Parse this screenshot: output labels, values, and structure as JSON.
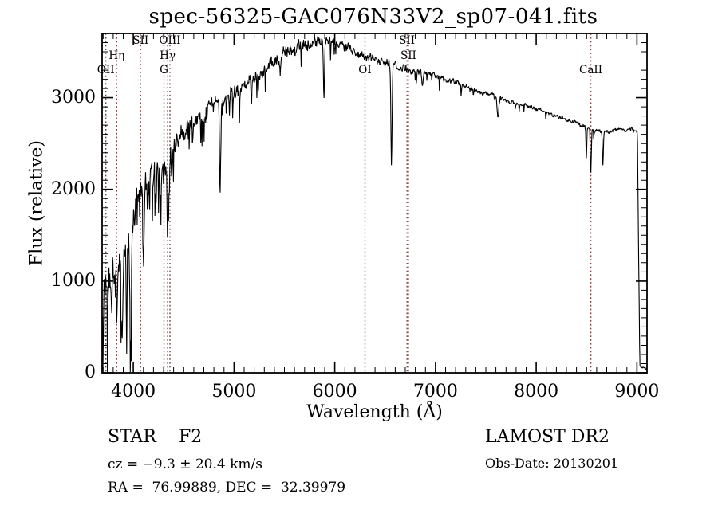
{
  "title": "spec-56325-GAC076N33V2_sp07-041.fits",
  "annotations": {
    "class_line": "STAR    F2",
    "cz_line": "cz = −9.3 ± 20.4 km/s",
    "radec_line": "RA =  76.99889, DEC =  32.39979",
    "survey": "LAMOST DR2",
    "obs_date": "Obs-Date: 20130201"
  },
  "chart_data": {
    "type": "line",
    "title": "spec-56325-GAC076N33V2_sp07-041.fits",
    "xlabel": "Wavelength (Å)",
    "ylabel": "Flux (relative)",
    "xlim": [
      3690,
      9100
    ],
    "ylim": [
      0,
      3700
    ],
    "x_ticks": [
      4000,
      5000,
      6000,
      7000,
      8000,
      9000
    ],
    "y_ticks": [
      0,
      1000,
      2000,
      3000
    ],
    "x_minor_step": 100,
    "y_minor_step": 100,
    "grid": false,
    "legend": "none",
    "line_color": "#000000",
    "marker_color": "#7a4141",
    "line_markers": [
      {
        "label": "OII",
        "wavelength": 3727,
        "row": 3
      },
      {
        "label": "Hη",
        "wavelength": 3835,
        "row": 2
      },
      {
        "label": "SII",
        "wavelength": 4072,
        "row": 1
      },
      {
        "label": "G",
        "wavelength": 4304,
        "row": 3
      },
      {
        "label": "Hγ",
        "wavelength": 4340,
        "row": 2
      },
      {
        "label": "OIII",
        "wavelength": 4363,
        "row": 1
      },
      {
        "label": "OI",
        "wavelength": 6300,
        "row": 3
      },
      {
        "label": "SII",
        "wavelength": 6717,
        "row": 1
      },
      {
        "label": "SII",
        "wavelength": 6731,
        "row": 2
      },
      {
        "label": "CaII",
        "wavelength": 8542,
        "row": 3
      }
    ],
    "spectrum": {
      "seed": 20130201,
      "step": 4,
      "continuum": [
        [
          3690,
          780
        ],
        [
          3730,
          980
        ],
        [
          3780,
          1080
        ],
        [
          3830,
          1150
        ],
        [
          3880,
          1230
        ],
        [
          3930,
          1340
        ],
        [
          3980,
          1500
        ],
        [
          4020,
          1820
        ],
        [
          4060,
          2010
        ],
        [
          4120,
          2080
        ],
        [
          4180,
          2180
        ],
        [
          4250,
          2230
        ],
        [
          4320,
          2270
        ],
        [
          4390,
          2400
        ],
        [
          4470,
          2560
        ],
        [
          4560,
          2680
        ],
        [
          4650,
          2790
        ],
        [
          4750,
          2900
        ],
        [
          4850,
          2980
        ],
        [
          4950,
          3020
        ],
        [
          5050,
          3080
        ],
        [
          5150,
          3180
        ],
        [
          5250,
          3270
        ],
        [
          5350,
          3350
        ],
        [
          5450,
          3440
        ],
        [
          5550,
          3510
        ],
        [
          5650,
          3560
        ],
        [
          5750,
          3600
        ],
        [
          5850,
          3630
        ],
        [
          5950,
          3620
        ],
        [
          6050,
          3580
        ],
        [
          6150,
          3520
        ],
        [
          6250,
          3470
        ],
        [
          6350,
          3430
        ],
        [
          6450,
          3400
        ],
        [
          6550,
          3370
        ],
        [
          6650,
          3330
        ],
        [
          6750,
          3300
        ],
        [
          6850,
          3280
        ],
        [
          6950,
          3260
        ],
        [
          7050,
          3220
        ],
        [
          7150,
          3180
        ],
        [
          7250,
          3140
        ],
        [
          7350,
          3100
        ],
        [
          7450,
          3060
        ],
        [
          7550,
          3020
        ],
        [
          7650,
          2980
        ],
        [
          7750,
          2950
        ],
        [
          7850,
          2920
        ],
        [
          7950,
          2900
        ],
        [
          8050,
          2860
        ],
        [
          8150,
          2820
        ],
        [
          8250,
          2780
        ],
        [
          8350,
          2740
        ],
        [
          8450,
          2700
        ],
        [
          8550,
          2660
        ],
        [
          8650,
          2630
        ],
        [
          8750,
          2630
        ],
        [
          8850,
          2650
        ],
        [
          8950,
          2650
        ],
        [
          9005,
          2620
        ],
        [
          9018,
          1200
        ],
        [
          9028,
          70
        ],
        [
          9100,
          45
        ]
      ],
      "noise_amplitude": [
        [
          3690,
          380
        ],
        [
          3800,
          320
        ],
        [
          3900,
          290
        ],
        [
          4000,
          240
        ],
        [
          4200,
          195
        ],
        [
          4400,
          170
        ],
        [
          4700,
          140
        ],
        [
          5000,
          120
        ],
        [
          5400,
          105
        ],
        [
          5800,
          90
        ],
        [
          6200,
          75
        ],
        [
          6600,
          62
        ],
        [
          7000,
          50
        ],
        [
          7400,
          42
        ],
        [
          7800,
          36
        ],
        [
          8200,
          32
        ],
        [
          8600,
          36
        ],
        [
          8950,
          30
        ],
        [
          9010,
          25
        ],
        [
          9100,
          12
        ]
      ],
      "dip_probability": [
        [
          3690,
          0.13
        ],
        [
          4100,
          0.1
        ],
        [
          4500,
          0.07
        ],
        [
          5200,
          0.04
        ],
        [
          6000,
          0.025
        ],
        [
          7000,
          0.02
        ],
        [
          9100,
          0.015
        ]
      ],
      "absorption_lines": [
        [
          3835,
          600,
          7
        ],
        [
          3889,
          900,
          8
        ],
        [
          3934,
          1000,
          7
        ],
        [
          3970,
          1050,
          8
        ],
        [
          4102,
          800,
          8
        ],
        [
          4226,
          320,
          6
        ],
        [
          4340,
          780,
          8
        ],
        [
          4383,
          300,
          6
        ],
        [
          4861,
          1040,
          8
        ],
        [
          5172,
          220,
          8
        ],
        [
          5893,
          600,
          7
        ],
        [
          6563,
          1100,
          8
        ],
        [
          6870,
          170,
          9
        ],
        [
          7620,
          200,
          11
        ],
        [
          8498,
          340,
          6
        ],
        [
          8542,
          480,
          7
        ],
        [
          8662,
          370,
          7
        ]
      ]
    }
  }
}
